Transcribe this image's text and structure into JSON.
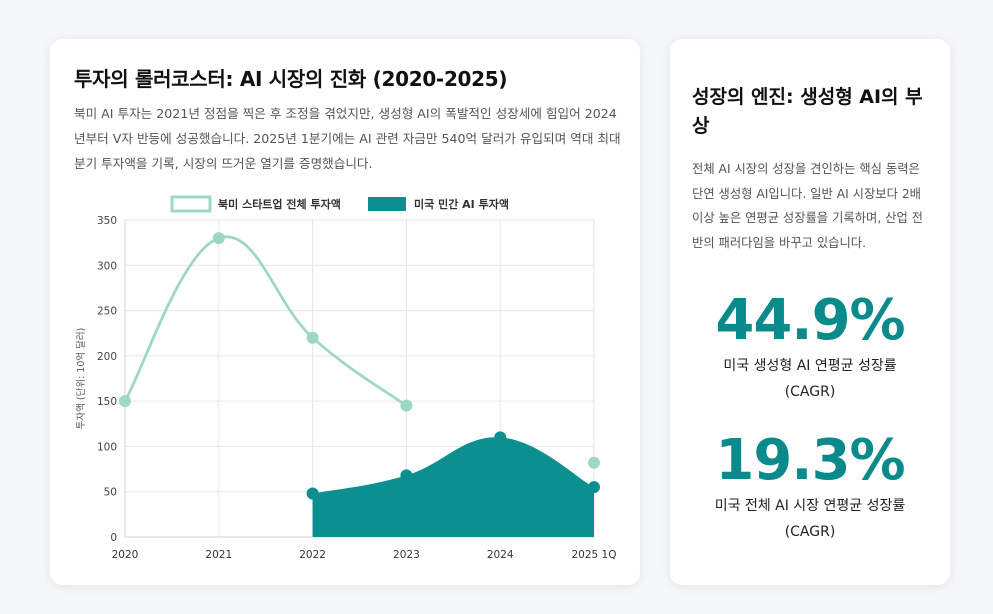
{
  "main": {
    "title": "투자의 롤러코스터: AI 시장의 진화 (2020-2025)",
    "description": "북미 AI 투자는 2021년 정점을 찍은 후 조정을 겪었지만, 생성형 AI의 폭발적인 성장세에 힘입어 2024년부터 V자 반등에 성공했습니다. 2025년 1분기에는 AI 관련 자금만 540억 달러가 유입되며 역대 최대 분기 투자액을 기록, 시장의 뜨거운 열기를 증명했습니다."
  },
  "chart_data": {
    "type": "line",
    "categories": [
      "2020",
      "2021",
      "2022",
      "2023",
      "2024",
      "2025 1Q"
    ],
    "ylabel": "투자액 (단위: 10억 달러)",
    "xlabel": "",
    "ylim": [
      0,
      350
    ],
    "yticks": [
      0,
      50,
      100,
      150,
      200,
      250,
      300,
      350
    ],
    "legend_position": "top",
    "grid": true,
    "series": [
      {
        "name": "북미 스타트업 전체 투자액",
        "style": "line",
        "color": "#9fd8c2",
        "values": [
          150,
          330,
          220,
          145,
          null,
          82
        ]
      },
      {
        "name": "미국 민간 AI 투자액",
        "style": "area",
        "color": "#0b8f8f",
        "values": [
          null,
          null,
          48,
          68,
          110,
          55
        ]
      }
    ]
  },
  "side": {
    "title": "성장의 엔진: 생성형 AI의 부상",
    "description": "전체 AI 시장의 성장을 견인하는 핵심 동력은 단연 생성형 AI입니다. 일반 AI 시장보다 2배 이상 높은 연평균 성장률을 기록하며, 산업 전반의 패러다임을 바꾸고 있습니다.",
    "stats": [
      {
        "value": "44.9%",
        "label": "미국 생성형 AI 연평균 성장률 (CAGR)"
      },
      {
        "value": "19.3%",
        "label": "미국 전체 AI 시장 연평균 성장률 (CAGR)"
      }
    ]
  }
}
